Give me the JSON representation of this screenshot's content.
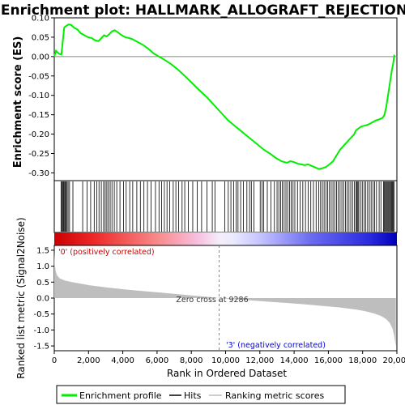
{
  "title": "Enrichment plot: HALLMARK_ALLOGRAFT_REJECTION",
  "colors": {
    "es_line": "#00ee00",
    "hits": "#000000",
    "metric_fill": "#bebebe",
    "pos_label": "#cc0000",
    "neg_label": "#0000cc",
    "zero_line": "#888888"
  },
  "chart_data": [
    {
      "type": "line",
      "name": "enrichment-score-panel",
      "ylabel": "Enrichment score (ES)",
      "ylim": [
        -0.32,
        0.1
      ],
      "yticks": [
        0.1,
        0.05,
        0.0,
        -0.05,
        -0.1,
        -0.15,
        -0.2,
        -0.25,
        -0.3
      ],
      "ytick_labels": [
        "0.10",
        "0.05",
        "0.00",
        "-0.05",
        "-0.10",
        "-0.15",
        "-0.20",
        "-0.25",
        "-0.30"
      ],
      "xlim": [
        0,
        19300
      ],
      "grid": false,
      "series": [
        {
          "name": "Enrichment profile",
          "x": [
            0,
            100,
            250,
            400,
            480,
            560,
            640,
            800,
            950,
            1100,
            1300,
            1500,
            1700,
            1900,
            2100,
            2300,
            2500,
            2700,
            2800,
            2950,
            3100,
            3250,
            3400,
            3600,
            3800,
            4000,
            4200,
            4400,
            4600,
            4800,
            5000,
            5300,
            5600,
            5900,
            6200,
            6600,
            7000,
            7400,
            7800,
            8200,
            8600,
            9000,
            9400,
            9800,
            10200,
            10600,
            11000,
            11400,
            11800,
            12200,
            12500,
            12800,
            13100,
            13300,
            13500,
            13700,
            13900,
            14100,
            14300,
            14500,
            14700,
            14900,
            15100,
            15300,
            15500,
            15700,
            15900,
            16100,
            16300,
            16500,
            16700,
            16900,
            17000,
            17150,
            17300,
            17500,
            17700,
            17900,
            18100,
            18300,
            18500,
            18600,
            18700,
            18800,
            18900,
            19000,
            19100,
            19150,
            19200
          ],
          "y": [
            0.0,
            0.015,
            0.008,
            0.005,
            0.04,
            0.075,
            0.078,
            0.083,
            0.082,
            0.075,
            0.07,
            0.06,
            0.055,
            0.05,
            0.048,
            0.042,
            0.04,
            0.05,
            0.055,
            0.052,
            0.058,
            0.065,
            0.068,
            0.062,
            0.055,
            0.05,
            0.048,
            0.045,
            0.04,
            0.035,
            0.03,
            0.02,
            0.008,
            0.0,
            -0.008,
            -0.02,
            -0.035,
            -0.052,
            -0.07,
            -0.088,
            -0.105,
            -0.125,
            -0.145,
            -0.165,
            -0.18,
            -0.195,
            -0.21,
            -0.225,
            -0.24,
            -0.252,
            -0.262,
            -0.27,
            -0.274,
            -0.27,
            -0.272,
            -0.276,
            -0.278,
            -0.28,
            -0.278,
            -0.282,
            -0.286,
            -0.29,
            -0.288,
            -0.285,
            -0.278,
            -0.27,
            -0.255,
            -0.24,
            -0.23,
            -0.22,
            -0.21,
            -0.2,
            -0.19,
            -0.185,
            -0.18,
            -0.178,
            -0.175,
            -0.17,
            -0.165,
            -0.162,
            -0.158,
            -0.15,
            -0.13,
            -0.1,
            -0.07,
            -0.04,
            -0.015,
            0.002,
            0.0
          ]
        }
      ]
    },
    {
      "type": "table",
      "name": "hits-panel",
      "legend_name": "Hits",
      "hit_ranks": [
        380,
        430,
        470,
        520,
        560,
        610,
        660,
        720,
        780,
        860,
        1050,
        1600,
        1850,
        2050,
        2250,
        2400,
        2520,
        2650,
        2780,
        2870,
        2960,
        3050,
        3150,
        3250,
        3380,
        3520,
        3700,
        3900,
        4050,
        4250,
        4420,
        4650,
        4850,
        5050,
        5250,
        5450,
        5700,
        5900,
        6050,
        6200,
        6350,
        6500,
        6700,
        6850,
        7000,
        7200,
        7350,
        7550,
        7800,
        8050,
        8300,
        8600,
        8900,
        9050,
        9600,
        9800,
        9950,
        10100,
        10250,
        10350,
        10500,
        10650,
        10850,
        11000,
        11100,
        11250,
        11600,
        11700,
        11800,
        12000,
        12200,
        12400,
        12550,
        12650,
        12750,
        12850,
        12950,
        13050,
        13150,
        13250,
        13350,
        13450,
        13550,
        13700,
        13850,
        14000,
        14150,
        14300,
        14450,
        14600,
        14750,
        14900,
        15000,
        15100,
        15200,
        15300,
        15400,
        15500,
        15600,
        15700,
        15800,
        15900,
        16000,
        16100,
        16200,
        16300,
        16400,
        16500,
        16600,
        16700,
        16800,
        16900,
        17000,
        17050,
        17100,
        17150,
        17250,
        17350,
        17450,
        17550,
        17650,
        17750,
        17850,
        17950,
        18050,
        18150,
        18300,
        18400,
        18550,
        18600,
        18650,
        18700,
        18750,
        18800,
        18850,
        18900,
        18950,
        19000,
        19050,
        19100,
        19150
      ]
    },
    {
      "type": "area",
      "name": "ranked-list-metric-panel",
      "xlabel": "Rank in Ordered Dataset",
      "ylabel": "Ranked list metric (Signal2Noise)",
      "ylim": [
        -1.65,
        1.65
      ],
      "yticks": [
        1.5,
        1.0,
        0.5,
        0.0,
        -0.5,
        -1.0,
        -1.5
      ],
      "ytick_labels": [
        "1.5",
        "1.0",
        "0.5",
        "0.0",
        "-0.5",
        "-1.0",
        "-1.5"
      ],
      "xlim": [
        0,
        19300
      ],
      "xticks": [
        0,
        2000,
        4000,
        6000,
        8000,
        10000,
        12000,
        14000,
        16000,
        18000,
        20000
      ],
      "xtick_labels": [
        "0",
        "2,000",
        "4,000",
        "6,000",
        "8,000",
        "10,000",
        "12,000",
        "14,000",
        "16,000",
        "18,000",
        "20,000"
      ],
      "series": [
        {
          "name": "Ranking metric scores",
          "x": [
            0,
            30,
            80,
            150,
            300,
            600,
            1000,
            2000,
            3000,
            4000,
            5000,
            6000,
            7000,
            8000,
            9000,
            9286,
            10000,
            11000,
            12000,
            13000,
            14000,
            15000,
            16000,
            17000,
            17500,
            18000,
            18400,
            18700,
            18900,
            19050,
            19150,
            19200,
            19240
          ],
          "y": [
            1.45,
            1.05,
            0.85,
            0.72,
            0.62,
            0.55,
            0.5,
            0.4,
            0.33,
            0.27,
            0.22,
            0.17,
            0.12,
            0.07,
            0.02,
            0.0,
            -0.03,
            -0.07,
            -0.11,
            -0.15,
            -0.19,
            -0.24,
            -0.29,
            -0.36,
            -0.41,
            -0.48,
            -0.56,
            -0.66,
            -0.78,
            -0.95,
            -1.18,
            -1.38,
            -1.5
          ]
        }
      ],
      "zero_cross_rank": 9286,
      "annotations": {
        "zero_cross": "Zero cross at 9286",
        "pos_label": "'0' (positively correlated)",
        "neg_label": "'3' (negatively correlated)"
      }
    }
  ],
  "legend": {
    "items": [
      {
        "label": "Enrichment profile",
        "color": "#00ee00"
      },
      {
        "label": "Hits",
        "color": "#000000"
      },
      {
        "label": "Ranking metric scores",
        "color": "#bebebe"
      }
    ]
  }
}
